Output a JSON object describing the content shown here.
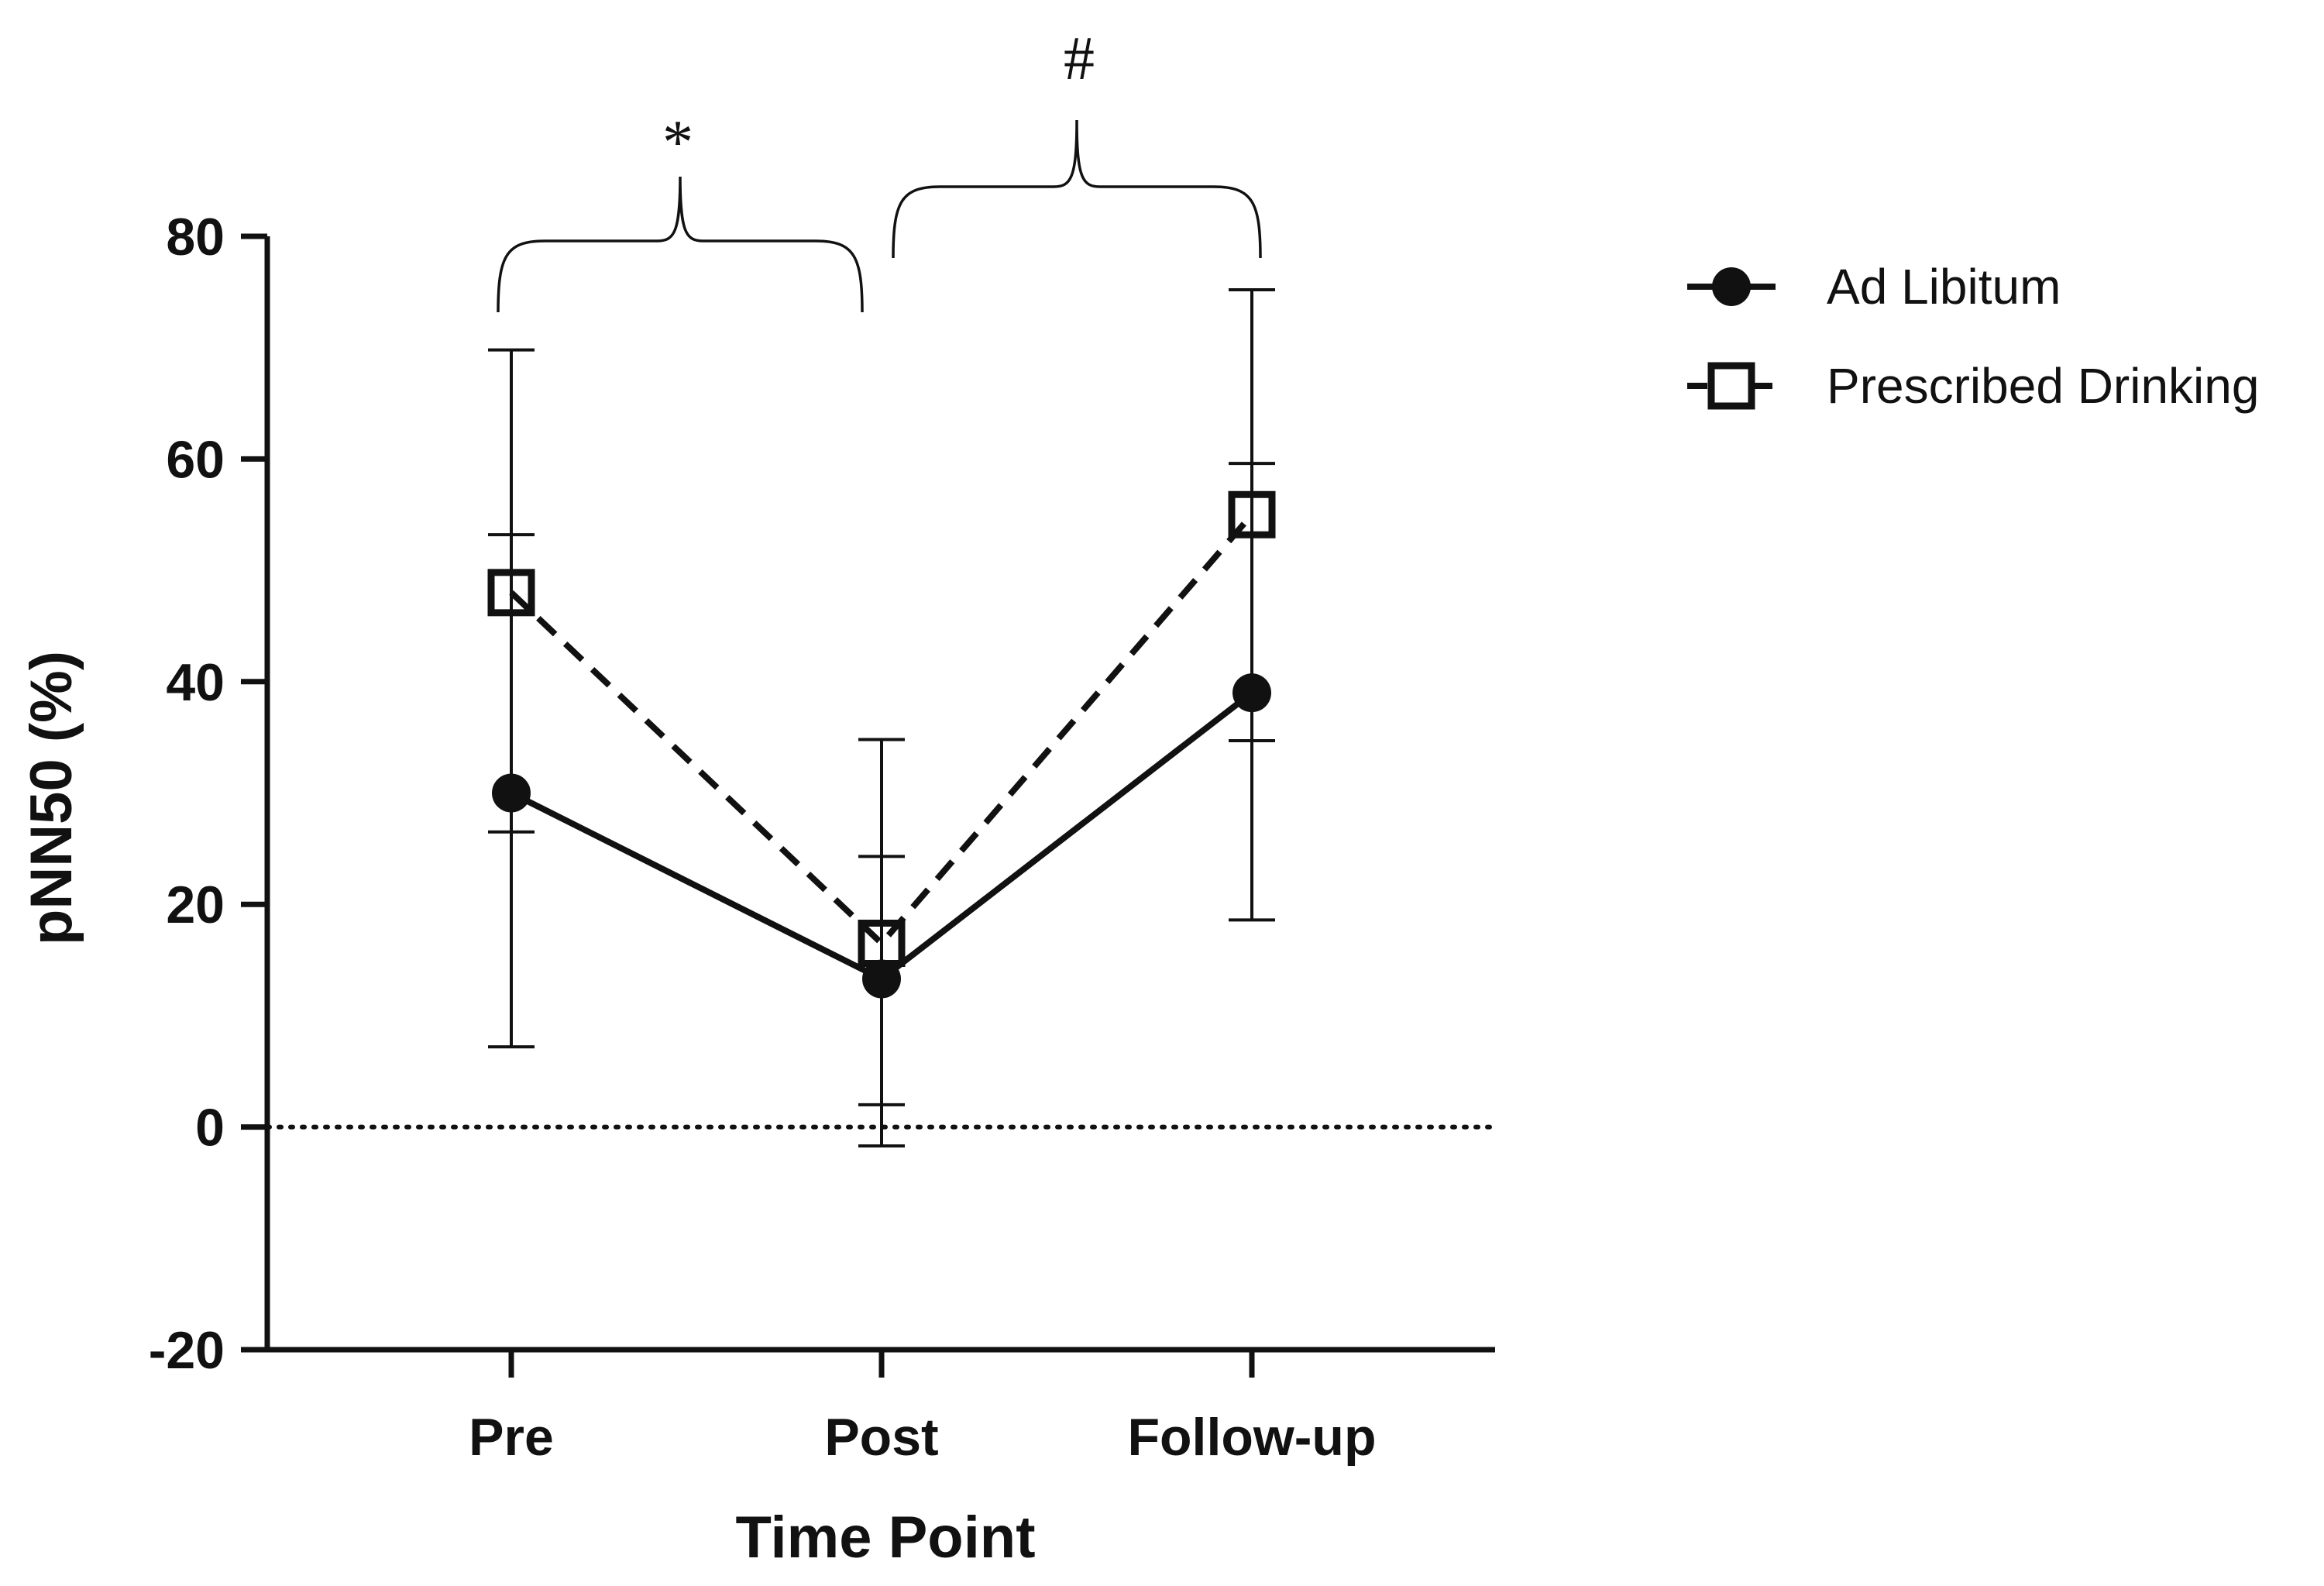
{
  "chart_data": {
    "type": "line",
    "xlabel": "Time Point",
    "ylabel": "pNN50 (%)",
    "categories": [
      "Pre",
      "Post",
      "Follow-up"
    ],
    "ylim": [
      -20,
      80
    ],
    "yticks": [
      "-20",
      "0",
      "20",
      "40",
      "60",
      "80"
    ],
    "reference_line": {
      "y": 0,
      "style": "dotted"
    },
    "grid": false,
    "legend_position": "top-right",
    "series": [
      {
        "name": "Ad Libitum",
        "marker": "filled-circle",
        "line_style": "solid",
        "values": [
          30,
          13.3,
          39
        ],
        "error_upper": [
          69.8,
          24.3,
          59.6
        ],
        "error_lower": [
          7.2,
          2,
          18.6
        ]
      },
      {
        "name": "Prescribed Drinking",
        "marker": "open-square",
        "line_style": "dashed",
        "values": [
          48,
          16.5,
          55
        ],
        "error_upper": [
          53.2,
          34.8,
          75.2
        ],
        "error_lower": [
          26.5,
          -1.7,
          34.7
        ]
      }
    ],
    "annotations": [
      {
        "text": "*",
        "between": [
          "Pre",
          "Post"
        ]
      },
      {
        "text": "#",
        "between": [
          "Post",
          "Follow-up"
        ]
      }
    ]
  },
  "colors": {
    "ink": "#111111",
    "background": "#ffffff"
  }
}
